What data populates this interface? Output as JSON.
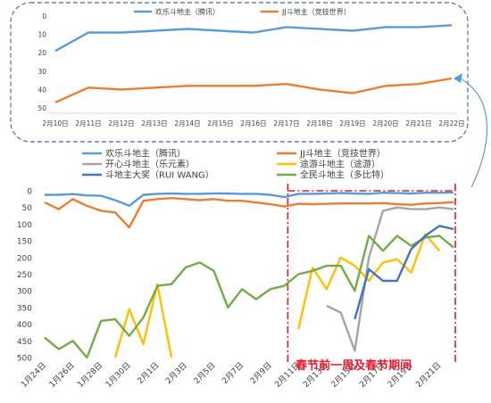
{
  "chart_data": [
    {
      "id": "inset",
      "type": "line",
      "x": [
        "2月10日",
        "2月11日",
        "2月12日",
        "2月13日",
        "2月14日",
        "2月15日",
        "2月16日",
        "2月17日",
        "2月18日",
        "2月19日",
        "2月20日",
        "2月21日",
        "2月22日"
      ],
      "y_ticks": [
        "0",
        "10",
        "20",
        "30",
        "40",
        "50"
      ],
      "ylim": [
        0,
        50
      ],
      "y_inverted": true,
      "grid": false,
      "legend_position": "top",
      "series": [
        {
          "name": "欢乐斗地主（腾讯）",
          "color": "#5b9bd5",
          "values": [
            19,
            9,
            9,
            8,
            7,
            8,
            9,
            6,
            7,
            8,
            6,
            6,
            5
          ]
        },
        {
          "name": "JJ斗地主（竞技世界）",
          "color": "#ed7d31",
          "values": [
            47,
            39,
            40,
            39,
            38,
            38,
            38,
            37,
            40,
            42,
            38,
            37,
            34
          ]
        }
      ]
    },
    {
      "id": "main",
      "type": "line",
      "x": [
        "1月24日",
        "1月25日",
        "1月26日",
        "1月27日",
        "1月28日",
        "1月29日",
        "1月30日",
        "1月31日",
        "2月1日",
        "2月2日",
        "2月3日",
        "2月4日",
        "2月5日",
        "2月6日",
        "2月7日",
        "2月8日",
        "2月9日",
        "2月10日",
        "2月11日",
        "2月12日",
        "2月13日",
        "2月14日",
        "2月15日",
        "2月16日",
        "2月17日",
        "2月18日",
        "2月19日",
        "2月20日",
        "2月21日",
        "2月22日"
      ],
      "x_tick_labels": [
        "1月24日",
        "",
        "1月26日",
        "",
        "1月28日",
        "",
        "1月30日",
        "",
        "2月1日",
        "",
        "2月3日",
        "",
        "2月5日",
        "",
        "2月7日",
        "",
        "2月9日",
        "",
        "2月11日",
        "",
        "2月13日",
        "",
        "2月15日",
        "",
        "2月17日",
        "",
        "2月19日",
        "",
        "2月21日",
        ""
      ],
      "y_ticks": [
        "0",
        "50",
        "100",
        "150",
        "200",
        "250",
        "300",
        "350",
        "400",
        "450",
        "500"
      ],
      "ylim": [
        0,
        500
      ],
      "y_inverted": true,
      "grid": false,
      "legend_position": "top",
      "annotation": "春节前一周及春节期间",
      "series": [
        {
          "name": "欢乐斗地主（腾讯）",
          "color": "#5b9bd5",
          "values": [
            12,
            12,
            10,
            14,
            15,
            28,
            45,
            12,
            9,
            8,
            9,
            9,
            8,
            8,
            9,
            9,
            12,
            19,
            9,
            9,
            8,
            7,
            8,
            9,
            6,
            7,
            8,
            6,
            6,
            5
          ]
        },
        {
          "name": "JJ斗地主（竞技世界）",
          "color": "#ed7d31",
          "values": [
            35,
            55,
            25,
            45,
            60,
            65,
            110,
            30,
            25,
            22,
            25,
            28,
            25,
            30,
            30,
            35,
            40,
            47,
            39,
            40,
            39,
            38,
            38,
            38,
            37,
            40,
            42,
            38,
            37,
            34
          ]
        },
        {
          "name": "开心斗地主（乐元素）",
          "color": "#a5a5a5",
          "values": [
            null,
            null,
            null,
            null,
            null,
            null,
            null,
            null,
            null,
            null,
            null,
            null,
            null,
            null,
            null,
            null,
            null,
            null,
            495,
            null,
            345,
            365,
            480,
            200,
            60,
            50,
            55,
            55,
            50,
            55
          ]
        },
        {
          "name": "途游斗地主（途游）",
          "color": "#ffc000",
          "values": [
            null,
            null,
            null,
            null,
            null,
            null,
            null,
            null,
            null,
            null,
            null,
            null,
            null,
            null,
            null,
            null,
            null,
            null,
            null,
            null,
            null,
            null,
            null,
            null,
            null,
            null,
            null,
            null,
            null,
            null
          ]
        },
        {
          "name": "斗地主大奖（RUI WANG）",
          "color": "#4472c4",
          "values": [
            null,
            null,
            null,
            null,
            null,
            null,
            null,
            null,
            null,
            null,
            null,
            null,
            null,
            null,
            null,
            null,
            null,
            null,
            null,
            null,
            null,
            null,
            385,
            235,
            270,
            270,
            175,
            135,
            105,
            115
          ]
        },
        {
          "name": "全民斗地主（多比特）",
          "color": "#70ad47",
          "values": [
            440,
            475,
            450,
            500,
            390,
            385,
            435,
            380,
            285,
            280,
            230,
            215,
            240,
            350,
            295,
            325,
            295,
            285,
            250,
            240,
            225,
            225,
            300,
            135,
            180,
            135,
            165,
            140,
            135,
            170
          ]
        }
      ],
      "extra_segments": {
        "途游斗地主（途游）": [
          [
            [
              5,
              500
            ],
            [
              6,
              355
            ],
            [
              7,
              460
            ],
            [
              8,
              280
            ],
            [
              9,
              500
            ]
          ],
          [
            [
              18,
              415
            ],
            [
              19,
              230
            ],
            [
              20,
              295
            ],
            [
              21,
              200
            ],
            [
              22,
              225
            ],
            [
              23,
              270
            ],
            [
              24,
              215
            ],
            [
              25,
              205
            ],
            [
              26,
              245
            ],
            [
              27,
              130
            ],
            [
              28,
              180
            ]
          ]
        ]
      }
    }
  ]
}
